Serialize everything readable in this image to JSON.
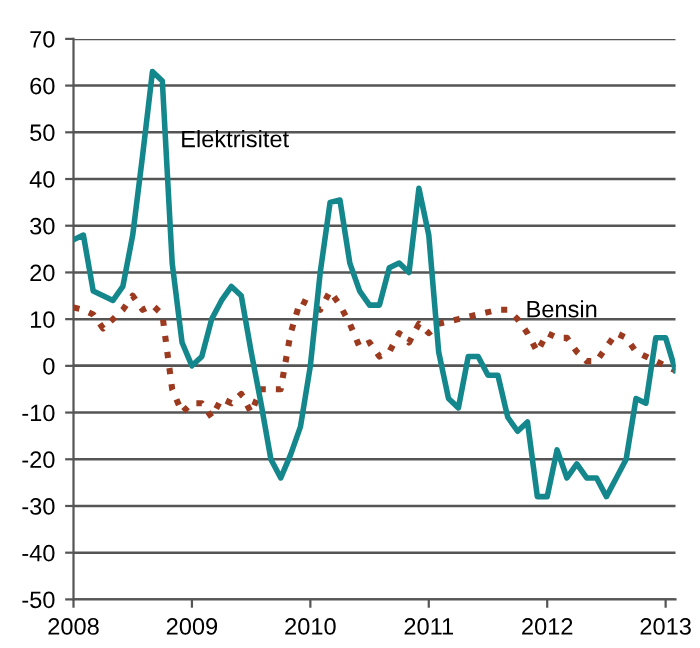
{
  "chart_data": {
    "type": "line",
    "x": [
      "2008-01",
      "2008-02",
      "2008-03",
      "2008-04",
      "2008-05",
      "2008-06",
      "2008-07",
      "2008-08",
      "2008-09",
      "2008-10",
      "2008-11",
      "2008-12",
      "2009-01",
      "2009-02",
      "2009-03",
      "2009-04",
      "2009-05",
      "2009-06",
      "2009-07",
      "2009-08",
      "2009-09",
      "2009-10",
      "2009-11",
      "2009-12",
      "2010-01",
      "2010-02",
      "2010-03",
      "2010-04",
      "2010-05",
      "2010-06",
      "2010-07",
      "2010-08",
      "2010-09",
      "2010-10",
      "2010-11",
      "2010-12",
      "2011-01",
      "2011-02",
      "2011-03",
      "2011-04",
      "2011-05",
      "2011-06",
      "2011-07",
      "2011-08",
      "2011-09",
      "2011-10",
      "2011-11",
      "2011-12",
      "2012-01",
      "2012-02",
      "2012-03",
      "2012-04",
      "2012-05",
      "2012-06",
      "2012-07",
      "2012-08",
      "2012-09",
      "2012-10",
      "2012-11",
      "2012-12",
      "2013-01",
      "2013-02"
    ],
    "series": [
      {
        "name": "Elektrisitet",
        "color": "#13878c",
        "line_style": "solid",
        "values": [
          27,
          28,
          16,
          15,
          14,
          17,
          28,
          45,
          63,
          61,
          22,
          5,
          0,
          2,
          10,
          14,
          17,
          15,
          3,
          -8,
          -20,
          -24,
          -19,
          -13,
          0,
          20,
          35,
          35.5,
          22,
          16,
          13,
          13,
          21,
          22,
          20,
          38,
          28,
          3,
          -7,
          -9,
          2,
          2,
          -2,
          -2,
          -11,
          -14,
          -12,
          -28,
          -28,
          -18,
          -24,
          -21,
          -24,
          -24,
          -28,
          -24,
          -20,
          -7,
          -8,
          6,
          6,
          -1
        ]
      },
      {
        "name": "Bensin",
        "color": "#9c3a20",
        "line_style": "dotted",
        "values": [
          12.5,
          12,
          11,
          8,
          10,
          12,
          15,
          12,
          13,
          11,
          -5,
          -10,
          -8,
          -8,
          -11,
          -7,
          -8,
          -6,
          -10,
          -5,
          -5,
          -5,
          7,
          14,
          13,
          12,
          16,
          13,
          9,
          4,
          5,
          2,
          3,
          7,
          5,
          9,
          7,
          9,
          9.5,
          10,
          10.5,
          11,
          11.5,
          12,
          12,
          10,
          7,
          3,
          7,
          6,
          6,
          3,
          1,
          1,
          4,
          7,
          6,
          3,
          2,
          1,
          0,
          -1
        ]
      }
    ],
    "xlim": [
      "2008-01",
      "2013-02"
    ],
    "xticks": [
      "2008",
      "2009",
      "2010",
      "2011",
      "2012",
      "2013"
    ],
    "ylim": [
      -50,
      70
    ],
    "yticks": [
      -50,
      -40,
      -30,
      -20,
      -10,
      0,
      10,
      20,
      30,
      40,
      50,
      60,
      70
    ],
    "grid": "y",
    "legend": false
  }
}
